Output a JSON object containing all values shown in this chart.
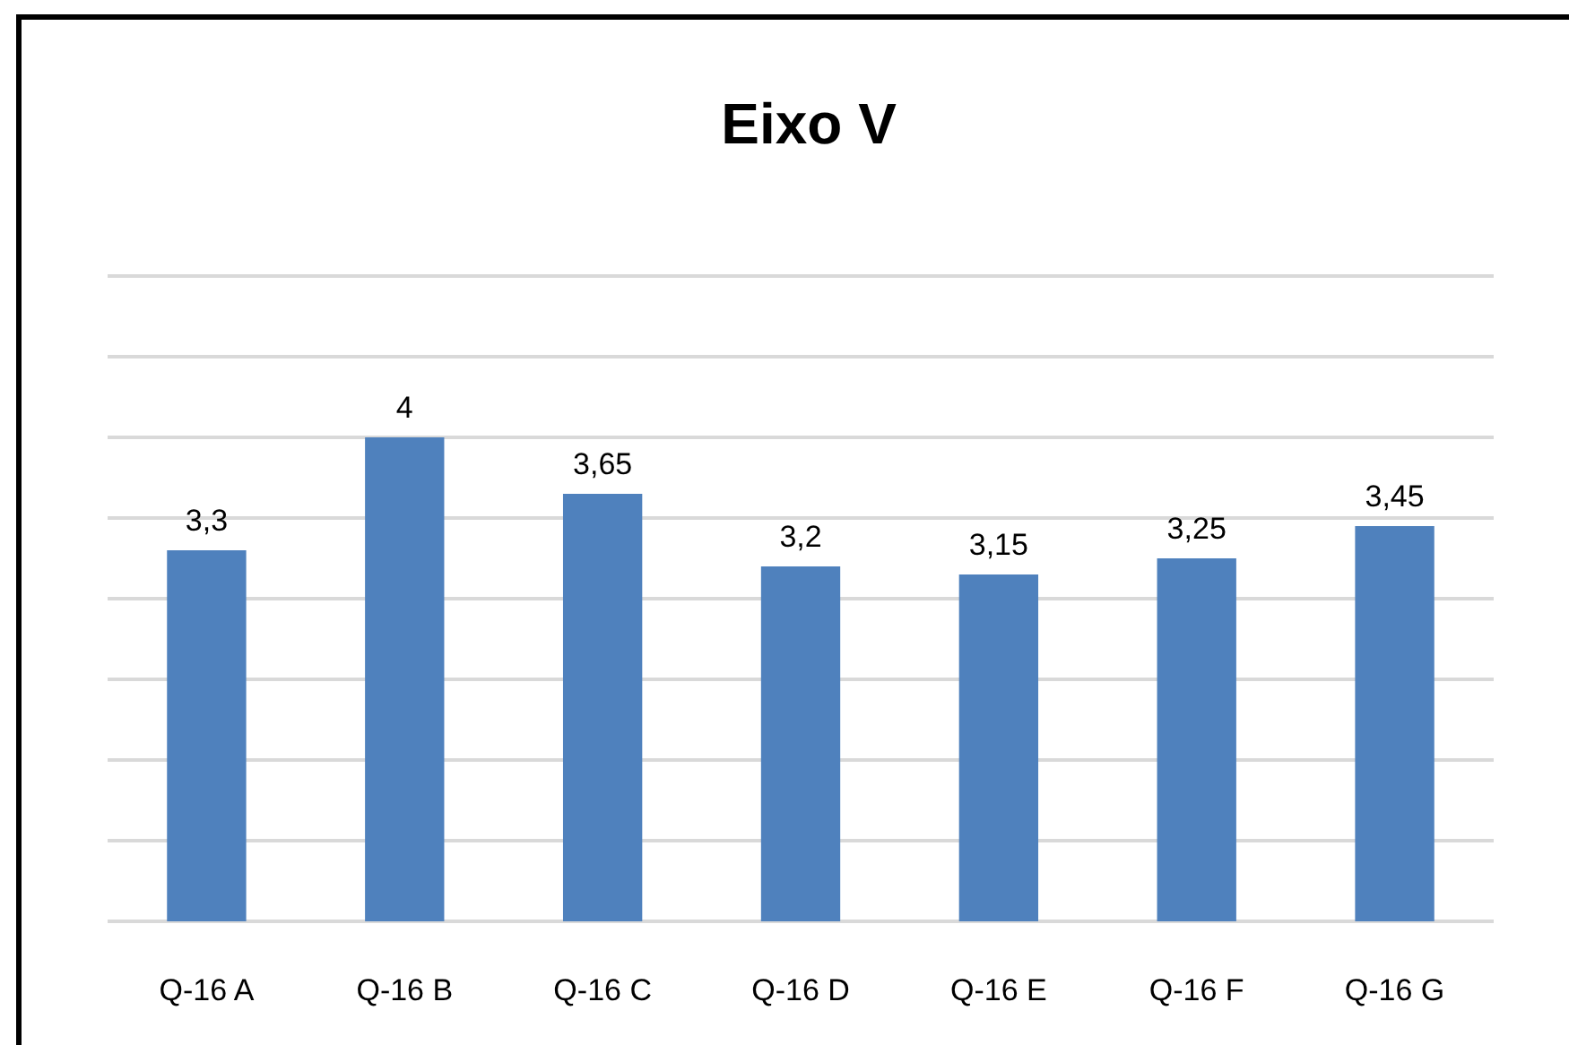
{
  "chart_data": {
    "type": "bar",
    "title": "Eixo V",
    "categories": [
      "Q-16 A",
      "Q-16 B",
      "Q-16 C",
      "Q-16 D",
      "Q-16 E",
      "Q-16 F",
      "Q-16 G"
    ],
    "values": [
      3.3,
      4,
      3.65,
      3.2,
      3.15,
      3.25,
      3.45
    ],
    "value_labels": [
      "3,3",
      "4",
      "3,65",
      "3,2",
      "3,15",
      "3,25",
      "3,45"
    ],
    "color": "#4f81bd",
    "ylim": [
      1,
      5
    ],
    "yticks": [
      {
        "value": 1,
        "label": null
      },
      {
        "value": 1.5,
        "label": null
      },
      {
        "value": 2,
        "label": null
      },
      {
        "value": 2.5,
        "label": null
      },
      {
        "value": 3,
        "label": null
      },
      {
        "value": 3.5,
        "label": null
      },
      {
        "value": 4,
        "label": null
      },
      {
        "value": 4.5,
        "label": null
      },
      {
        "value": 5,
        "label": null
      }
    ],
    "grid": "y"
  }
}
